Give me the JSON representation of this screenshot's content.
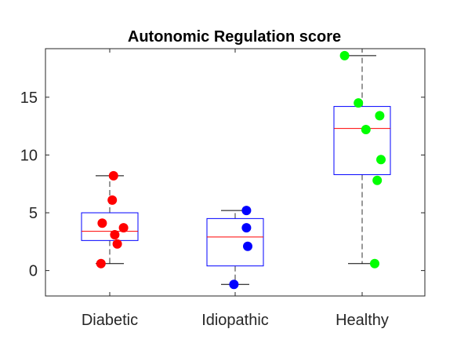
{
  "chart_data": {
    "type": "boxplot",
    "title": "Autonomic Regulation score",
    "xlabel": "",
    "ylabel": "",
    "categories": [
      "Diabetic",
      "Idiopathic",
      "Healthy"
    ],
    "ylim": [
      -2.2,
      19.2
    ],
    "yticks": [
      0,
      5,
      10,
      15
    ],
    "grid": false,
    "groups": [
      {
        "name": "Diabetic",
        "box_color": "#0000ff",
        "point_color": "#ff0000",
        "median_color": "#ff0000",
        "whisker_low": 0.6,
        "q1": 2.6,
        "median": 3.4,
        "q3": 5.0,
        "whisker_high": 8.2,
        "points": [
          {
            "x_offset": 0.03,
            "y": 8.2
          },
          {
            "x_offset": 0.02,
            "y": 6.1
          },
          {
            "x_offset": -0.06,
            "y": 4.1
          },
          {
            "x_offset": 0.11,
            "y": 3.7
          },
          {
            "x_offset": 0.04,
            "y": 3.1
          },
          {
            "x_offset": 0.06,
            "y": 2.3
          },
          {
            "x_offset": -0.07,
            "y": 0.6
          }
        ]
      },
      {
        "name": "Idiopathic",
        "box_color": "#0000ff",
        "point_color": "#0000ff",
        "median_color": "#ff0000",
        "whisker_low": -1.2,
        "q1": 0.4,
        "median": 2.9,
        "q3": 4.5,
        "whisker_high": 5.2,
        "points": [
          {
            "x_offset": 0.09,
            "y": 5.2
          },
          {
            "x_offset": 0.09,
            "y": 3.7
          },
          {
            "x_offset": 0.1,
            "y": 2.1
          },
          {
            "x_offset": -0.01,
            "y": -1.2
          }
        ]
      },
      {
        "name": "Healthy",
        "box_color": "#0000ff",
        "point_color": "#00ff00",
        "median_color": "#ff0000",
        "whisker_low": 0.6,
        "q1": 8.3,
        "median": 12.3,
        "q3": 14.2,
        "whisker_high": 18.6,
        "points": [
          {
            "x_offset": -0.14,
            "y": 18.6
          },
          {
            "x_offset": -0.03,
            "y": 14.5
          },
          {
            "x_offset": 0.14,
            "y": 13.4
          },
          {
            "x_offset": 0.03,
            "y": 12.2
          },
          {
            "x_offset": 0.15,
            "y": 9.6
          },
          {
            "x_offset": 0.12,
            "y": 7.8
          },
          {
            "x_offset": 0.1,
            "y": 0.6
          }
        ]
      }
    ]
  }
}
